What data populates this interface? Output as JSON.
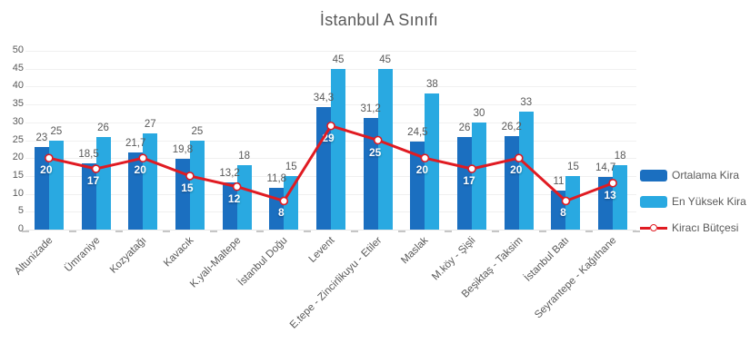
{
  "colors": {
    "bar_dark": "#1B6FC0",
    "bar_light": "#29A9E1",
    "line_red": "#E01B22",
    "text_gray": "#595959",
    "grid": "#F0F0F0"
  },
  "chart_data": {
    "type": "bar",
    "title": "İstanbul A Sınıfı",
    "categories": [
      "Altunizade",
      "Ümraniye",
      "Kozyatağı",
      "Kavacık",
      "K.yalı-Maltepe",
      "İstanbul Doğu",
      "Levent",
      "E.tepe - Zincirlikuyu - Etiler",
      "Maslak",
      "M.köy - Şişli",
      "Beşiktaş - Taksim",
      "İstanbul Batı",
      "Seyrantepe - Kağıthane"
    ],
    "series": [
      {
        "name": "Ortalama Kira",
        "type": "bar",
        "color": "#1B6FC0",
        "values": [
          23,
          18.5,
          21.7,
          19.8,
          13.2,
          11.8,
          34.3,
          31.2,
          24.5,
          26,
          26.2,
          11,
          14.7
        ],
        "labels": [
          "23",
          "18,5",
          "21,7",
          "19,8",
          "13,2",
          "11,8",
          "34,3",
          "31,2",
          "24,5",
          "26",
          "26,2",
          "11",
          "14,7"
        ]
      },
      {
        "name": "En Yüksek Kira",
        "type": "bar",
        "color": "#29A9E1",
        "values": [
          25,
          26,
          27,
          25,
          18,
          15,
          45,
          45,
          38,
          30,
          33,
          15,
          18
        ],
        "labels": [
          "25",
          "26",
          "27",
          "25",
          "18",
          "15",
          "45",
          "45",
          "38",
          "30",
          "33",
          "15",
          "18"
        ]
      },
      {
        "name": "Kiracı Bütçesi",
        "type": "line",
        "color": "#E01B22",
        "values": [
          20,
          17,
          20,
          15,
          12,
          8,
          29,
          25,
          20,
          17,
          20,
          8,
          13
        ],
        "labels": [
          "20",
          "17",
          "20",
          "15",
          "12",
          "8",
          "29",
          "25",
          "20",
          "17",
          "20",
          "8",
          "13"
        ]
      }
    ],
    "ylim": [
      0,
      50
    ],
    "ytick_step": 5,
    "y_ticks": [
      "0",
      "5",
      "10",
      "15",
      "20",
      "25",
      "30",
      "35",
      "40",
      "45",
      "50"
    ],
    "grid": true,
    "legend_position": "right"
  }
}
